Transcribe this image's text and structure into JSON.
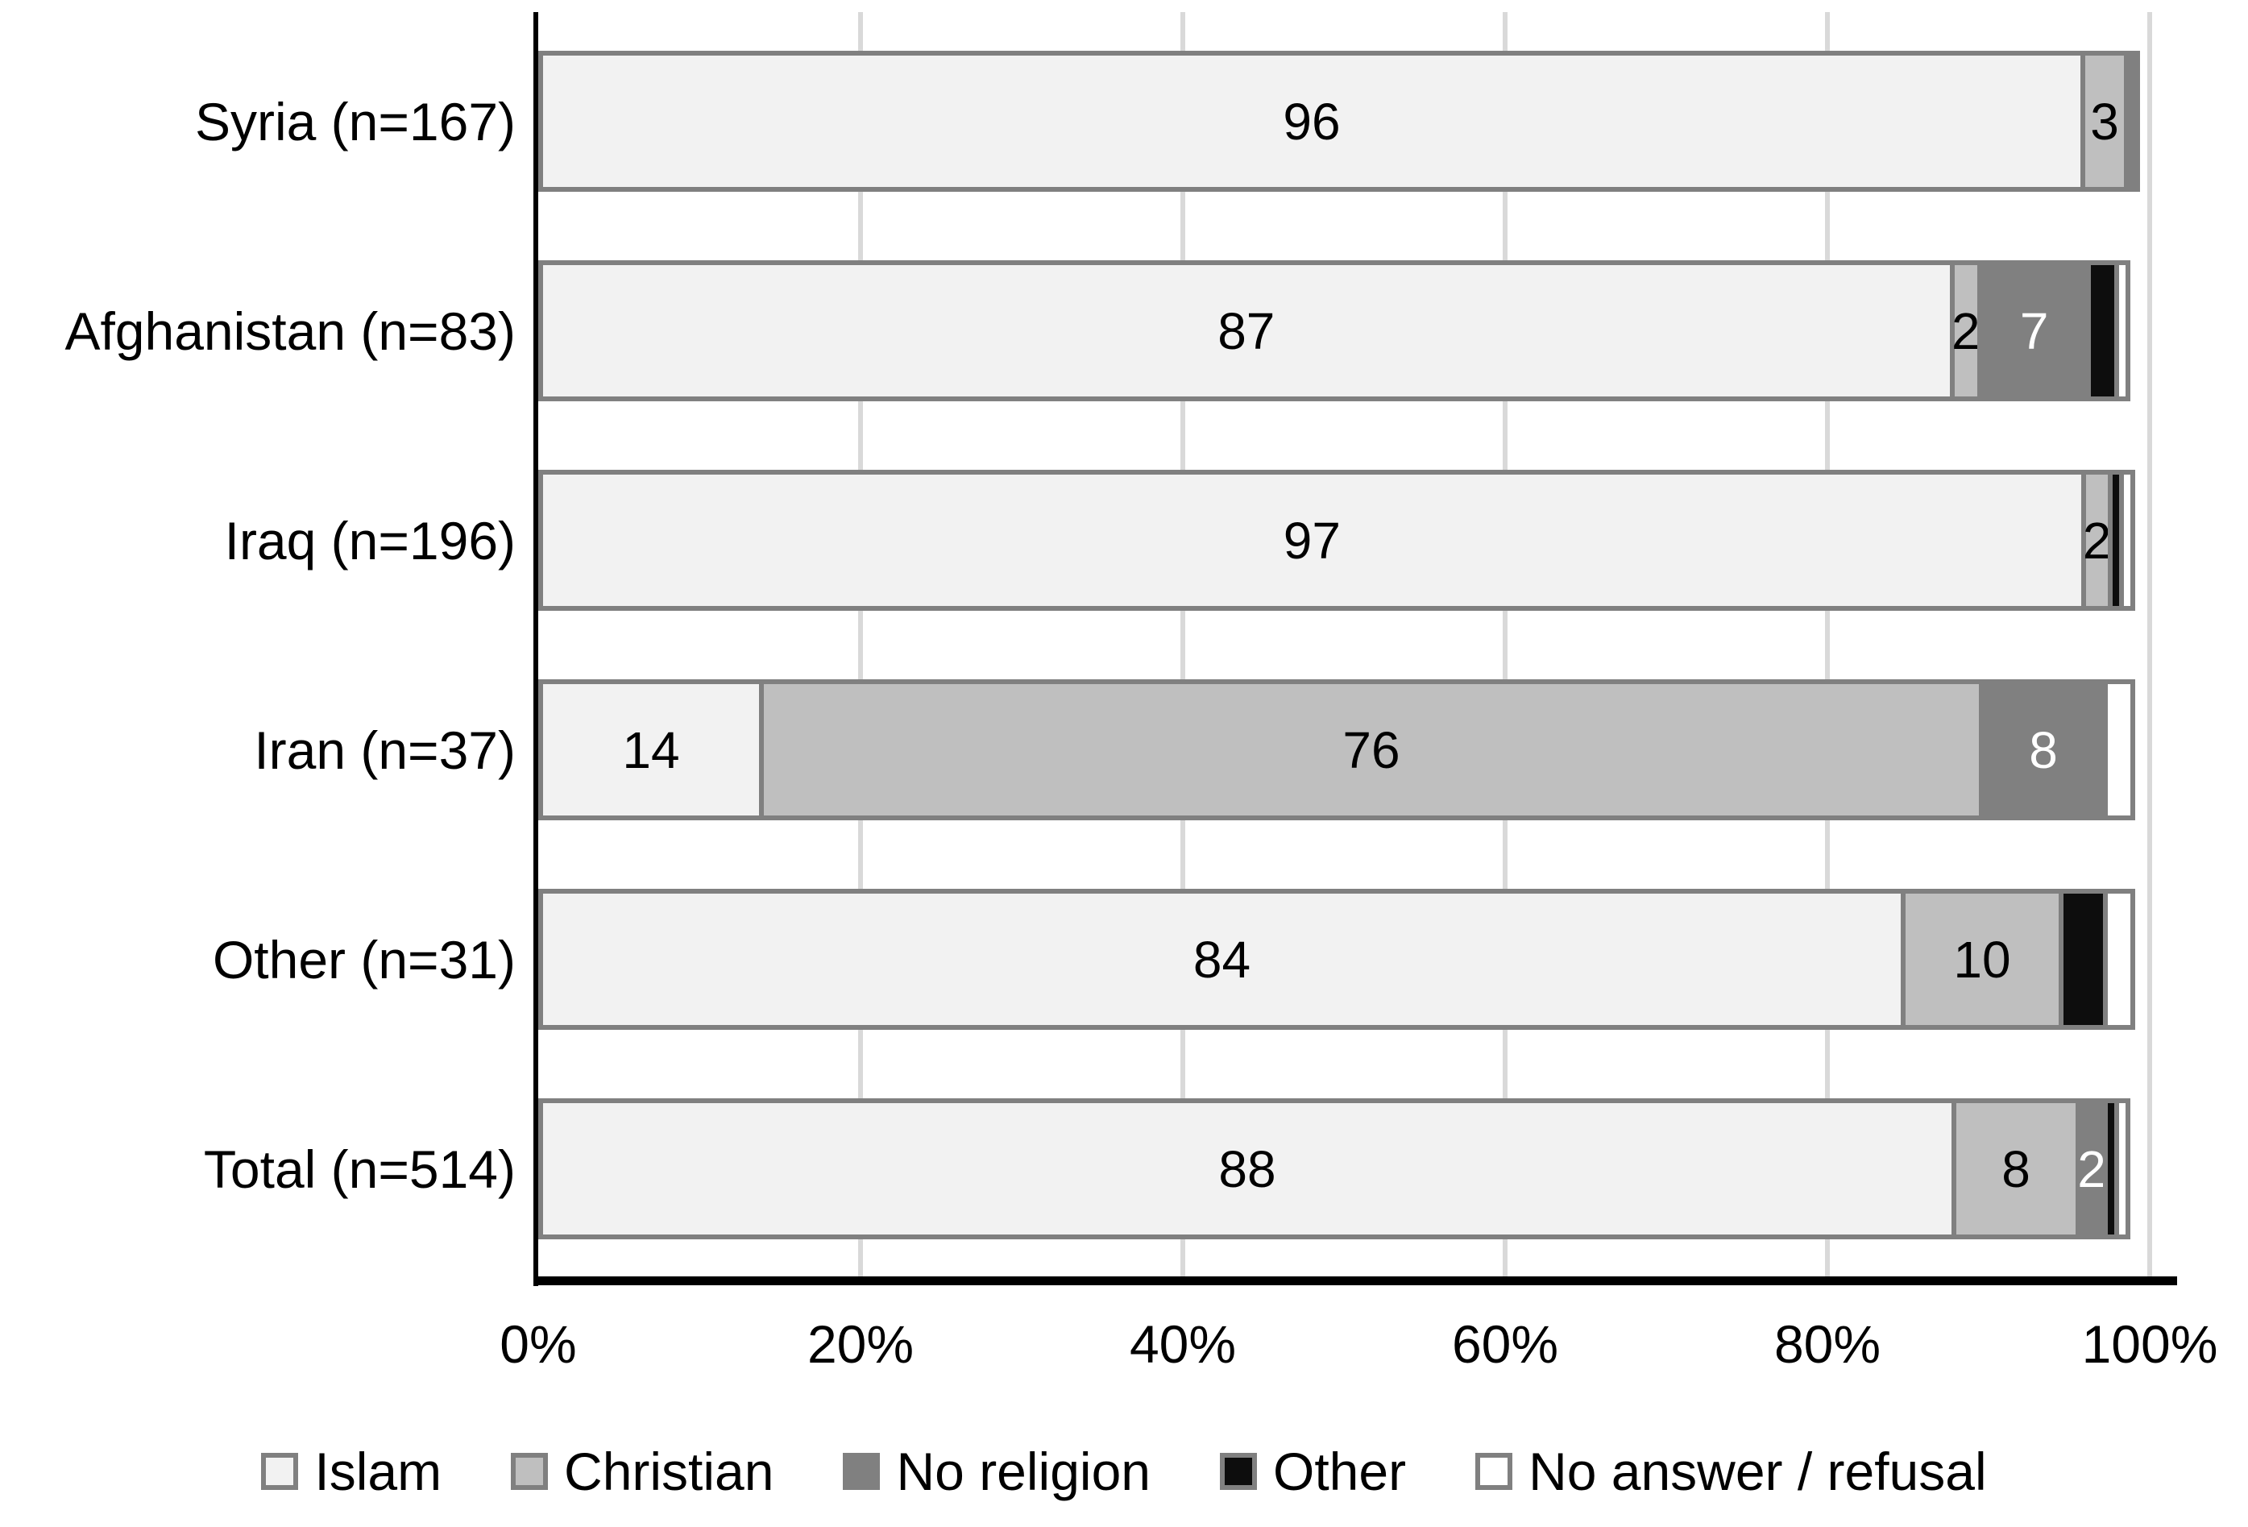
{
  "chart_data": {
    "type": "bar",
    "subtype": "horizontal-100pct-stacked",
    "title": "",
    "categories": [
      "Syria (n=167)",
      "Afghanistan (n=83)",
      "Iraq (n=196)",
      "Iran (n=37)",
      "Other (n=31)",
      "Total (n=514)"
    ],
    "series": [
      {
        "name": "Islam",
        "color": "#f2f2f2",
        "label_color": "#000000",
        "values": [
          96,
          87,
          97,
          14,
          84,
          88
        ],
        "labels": [
          "96",
          "87",
          "97",
          "14",
          "84",
          "88"
        ]
      },
      {
        "name": "Christian",
        "color": "#bfbfbf",
        "label_color": "#000000",
        "values": [
          3,
          2,
          2,
          76,
          10,
          8
        ],
        "labels": [
          "3",
          "2",
          "2",
          "76",
          "10",
          "8"
        ]
      },
      {
        "name": "No religion",
        "color": "#808080",
        "label_color": "#ffffff",
        "values": [
          1,
          7,
          0,
          8,
          0,
          2
        ],
        "labels": [
          "",
          "7",
          "",
          "8",
          "",
          "2"
        ]
      },
      {
        "name": "Other",
        "color": "#0d0d0d",
        "label_color": "#ffffff",
        "values": [
          0,
          2,
          1,
          0,
          3,
          1
        ],
        "labels": [
          "",
          "",
          "",
          "",
          "",
          ""
        ]
      },
      {
        "name": "No answer / refusal",
        "color": "#ffffff",
        "label_color": "#000000",
        "values": [
          0,
          1,
          1,
          2,
          2,
          1
        ],
        "labels": [
          "",
          "",
          "",
          "",
          "",
          ""
        ]
      }
    ],
    "x_axis": {
      "min": 0,
      "max": 100,
      "ticks": [
        "0%",
        "20%",
        "40%",
        "60%",
        "80%",
        "100%"
      ]
    },
    "grid": "vertical-major",
    "legend_position": "bottom",
    "style_colors": {
      "segment_border": "#808080",
      "gridline": "#d9d9d9",
      "axis": "#000000",
      "text": "#000000",
      "background": "#ffffff"
    }
  }
}
